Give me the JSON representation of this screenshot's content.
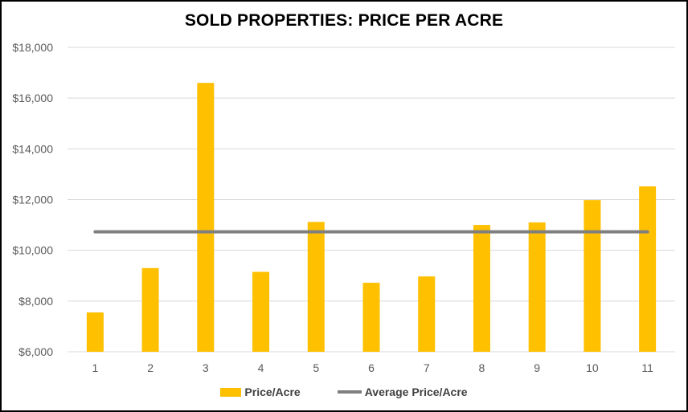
{
  "chart_data": {
    "type": "bar",
    "title": "SOLD PROPERTIES: PRICE PER ACRE",
    "categories": [
      "1",
      "2",
      "3",
      "4",
      "5",
      "6",
      "7",
      "8",
      "9",
      "10",
      "11"
    ],
    "series": [
      {
        "name": "Price/Acre",
        "type": "bar",
        "color": "#FFC000",
        "values": [
          7550,
          9300,
          16600,
          9150,
          11120,
          8720,
          8970,
          11000,
          11100,
          11980,
          12520
        ]
      },
      {
        "name": "Average Price/Acre",
        "type": "line",
        "color": "#7F7F7F",
        "values": [
          10730,
          10730,
          10730,
          10730,
          10730,
          10730,
          10730,
          10730,
          10730,
          10730,
          10730
        ]
      }
    ],
    "ylim": [
      6000,
      18000
    ],
    "yticks": [
      6000,
      8000,
      10000,
      12000,
      14000,
      16000,
      18000
    ],
    "ytick_labels": [
      "$6,000",
      "$8,000",
      "$10,000",
      "$12,000",
      "$14,000",
      "$16,000",
      "$18,000"
    ],
    "xlabel": "",
    "ylabel": "",
    "grid": true,
    "legend_position": "bottom"
  }
}
